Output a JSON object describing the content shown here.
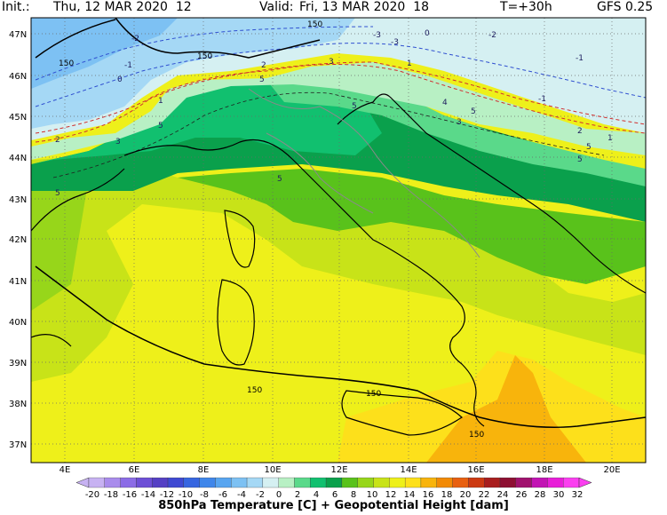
{
  "header": {
    "init_label": "Init.:",
    "init_value": "Thu, 12 MAR 2020  12",
    "valid_label": "Valid:",
    "valid_value": "Fri, 13 MAR 2020  18",
    "step": "T=+30h",
    "model": "GFS 0.25"
  },
  "axes": {
    "lat_labels": [
      "47N",
      "46N",
      "45N",
      "44N",
      "43N",
      "42N",
      "41N",
      "40N",
      "39N",
      "38N",
      "37N"
    ],
    "lon_labels": [
      "4E",
      "6E",
      "8E",
      "10E",
      "12E",
      "14E",
      "16E",
      "18E",
      "20E"
    ]
  },
  "contour_labels": {
    "temperature": [
      "-2",
      "-3",
      "-1",
      "0",
      "1",
      "2",
      "3",
      "5",
      "-2",
      "-3",
      "-1",
      "0",
      "1",
      "2",
      "3",
      "5",
      "5",
      "5",
      "5",
      "-1",
      "1",
      "2",
      "3",
      "5",
      "5",
      "4",
      "5"
    ],
    "height": [
      "150",
      "150",
      "150",
      "150",
      "150",
      "150"
    ]
  },
  "colorbar": {
    "ticks": [
      "-20",
      "-18",
      "-16",
      "-14",
      "-12",
      "-10",
      "-8",
      "-6",
      "-4",
      "-2",
      "0",
      "2",
      "4",
      "6",
      "8",
      "10",
      "12",
      "14",
      "16",
      "18",
      "20",
      "22",
      "24",
      "26",
      "28",
      "30",
      "32"
    ],
    "colors": [
      "#c7b2f2",
      "#a98cec",
      "#8b6ce6",
      "#6d4fd6",
      "#5540c4",
      "#3f49d2",
      "#3766e0",
      "#3f86ea",
      "#58a5f0",
      "#7dc1f3",
      "#a5d8f5",
      "#d5f0f2",
      "#b8f0c4",
      "#5ad98a",
      "#11c06f",
      "#0aa04c",
      "#59c21b",
      "#97d61a",
      "#c8e318",
      "#eef01a",
      "#fde01b",
      "#f8b40c",
      "#f28a05",
      "#e86010",
      "#cc3a12",
      "#a81e1e",
      "#8d0f32",
      "#a0126e",
      "#c214b4",
      "#e81ed8",
      "#fb3ff0"
    ],
    "caption": "850hPa Temperature [C] + Geopotential Height [dam]"
  },
  "colors": {
    "header_value": "#1f5fd0",
    "land_border": "#000000",
    "admin_border": "#8a8a8a"
  }
}
